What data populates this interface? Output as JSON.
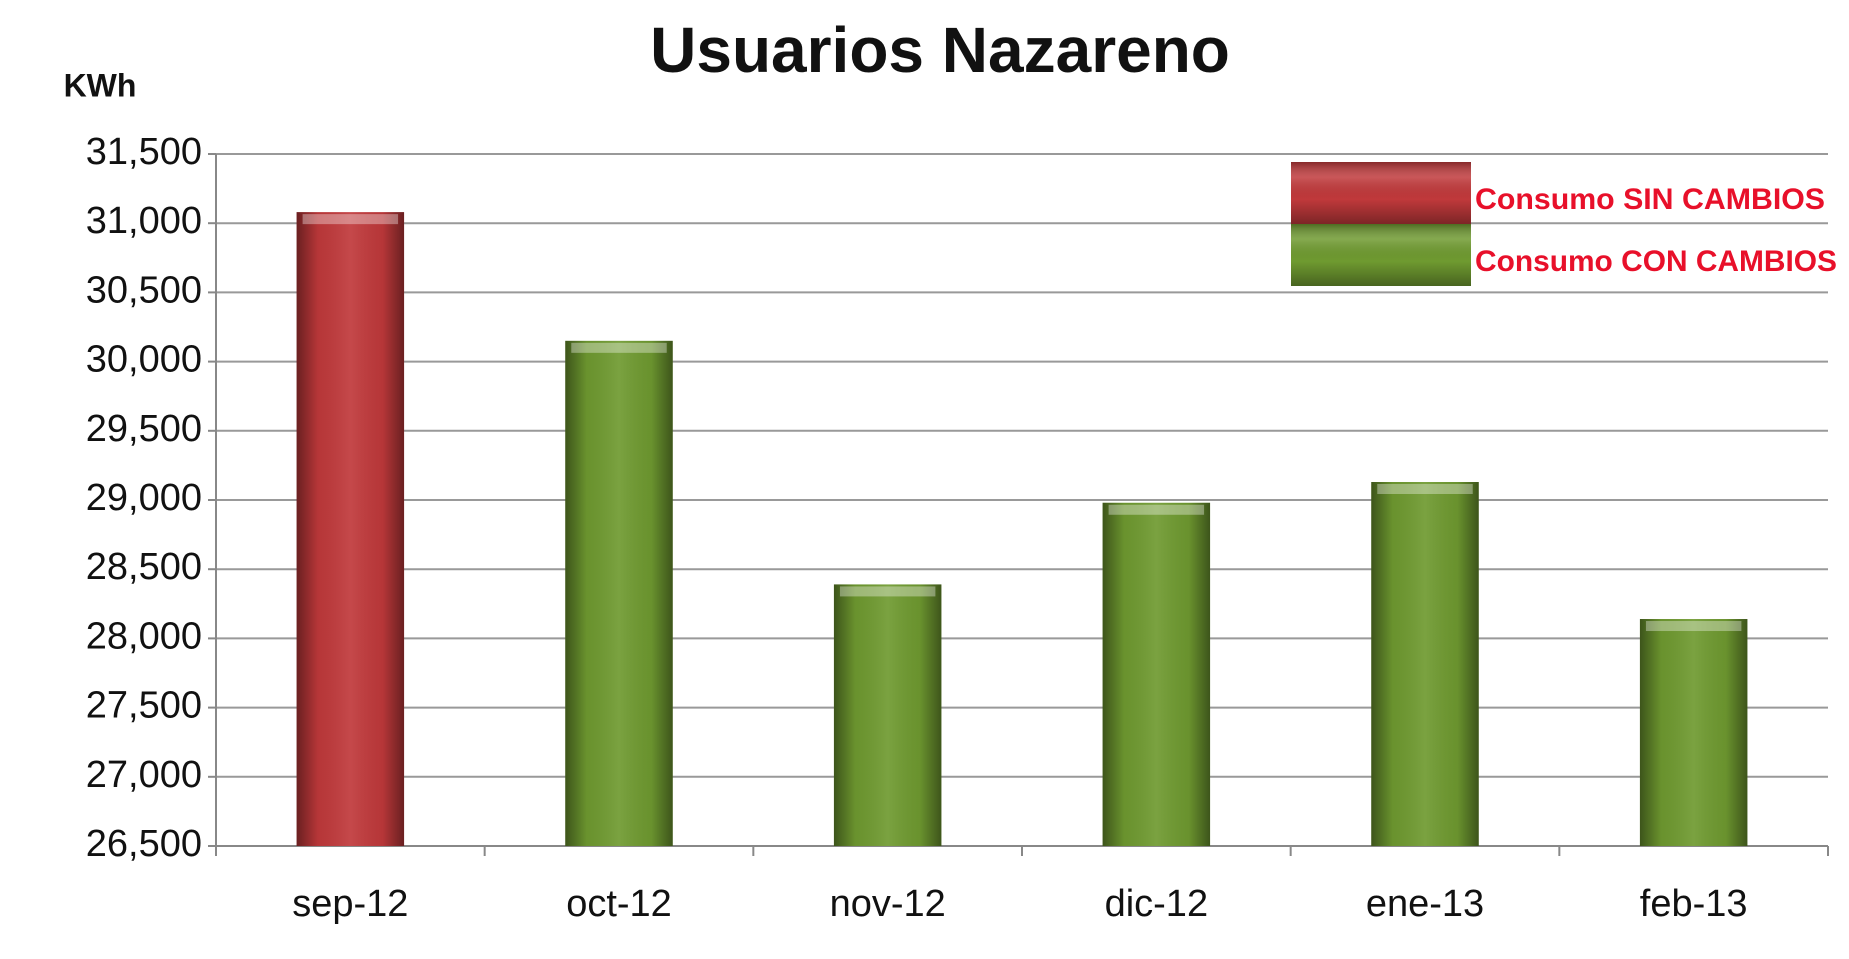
{
  "chart_data": {
    "type": "bar",
    "title": "Usuarios Nazareno",
    "y_label": "KWh",
    "categories": [
      "sep-12",
      "oct-12",
      "nov-12",
      "dic-12",
      "ene-13",
      "feb-13"
    ],
    "series": [
      {
        "name": "Consumo SIN CAMBIOS",
        "color": "#c0393b",
        "values": [
          31080,
          null,
          null,
          null,
          null,
          null
        ]
      },
      {
        "name": "Consumo CON CAMBIOS",
        "color": "#6f9a30",
        "values": [
          null,
          30150,
          28390,
          28980,
          29130,
          28140
        ]
      }
    ],
    "ylim": [
      26500,
      31500
    ],
    "yticks": [
      {
        "value": 26500,
        "label": "26,500"
      },
      {
        "value": 27000,
        "label": "27,000"
      },
      {
        "value": 27500,
        "label": "27,500"
      },
      {
        "value": 28000,
        "label": "28,000"
      },
      {
        "value": 28500,
        "label": "28,500"
      },
      {
        "value": 29000,
        "label": "29,000"
      },
      {
        "value": 29500,
        "label": "29,500"
      },
      {
        "value": 30000,
        "label": "30,000"
      },
      {
        "value": 30500,
        "label": "30,500"
      },
      {
        "value": 31000,
        "label": "31,000"
      },
      {
        "value": 31500,
        "label": "31,500"
      }
    ],
    "grid": true,
    "legend": "top-right"
  }
}
